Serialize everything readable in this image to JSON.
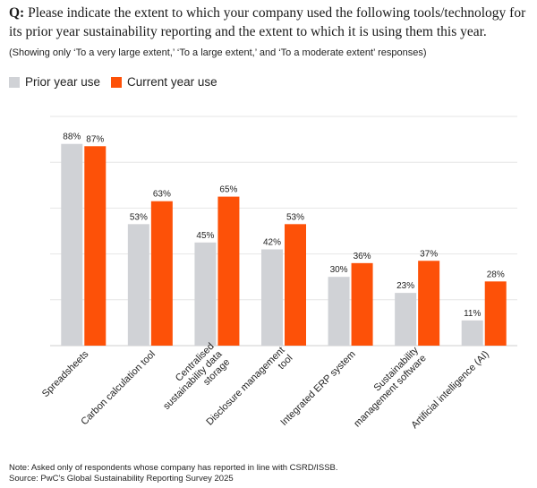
{
  "question": {
    "prefix": "Q:",
    "text": "Please indicate the extent to which your company used the following tools/technology for its prior year sustainability reporting and the extent to which it is using them this year."
  },
  "subtitle": "(Showing only ‘To a very large extent,’ ‘To a large extent,’ and ‘To a moderate extent’ responses)",
  "colors": {
    "prior": "#d0d2d6",
    "current": "#fd5108",
    "grid": "#e6e6e6"
  },
  "chart_data": {
    "type": "bar",
    "categories": [
      "Spreadsheets",
      "Carbon calculation tool",
      "Centralised sustainability data storage",
      "Disclosure management tool",
      "Integrated ERP system",
      "Sustainability management software",
      "Artificial intelligence (AI)"
    ],
    "category_lines": [
      [
        "Spreadsheets"
      ],
      [
        "Carbon calculation tool"
      ],
      [
        "Centralised",
        "sustainability data",
        "storage"
      ],
      [
        "Disclosure management",
        "tool"
      ],
      [
        "Integrated ERP system"
      ],
      [
        "Sustainability",
        "management software"
      ],
      [
        "Artificial intelligence (AI)"
      ]
    ],
    "series": [
      {
        "name": "Prior year use",
        "values": [
          88,
          53,
          45,
          42,
          30,
          23,
          11
        ]
      },
      {
        "name": "Current year use",
        "values": [
          87,
          63,
          65,
          53,
          36,
          37,
          28
        ]
      }
    ],
    "value_suffix": "%",
    "ylim": [
      0,
      100
    ],
    "grid": true,
    "legend_position": "top-left"
  },
  "footer": {
    "note": "Note: Asked only of respondents whose company has reported in line with CSRD/ISSB.",
    "source": "Source: PwC’s Global Sustainability Reporting Survey 2025"
  }
}
